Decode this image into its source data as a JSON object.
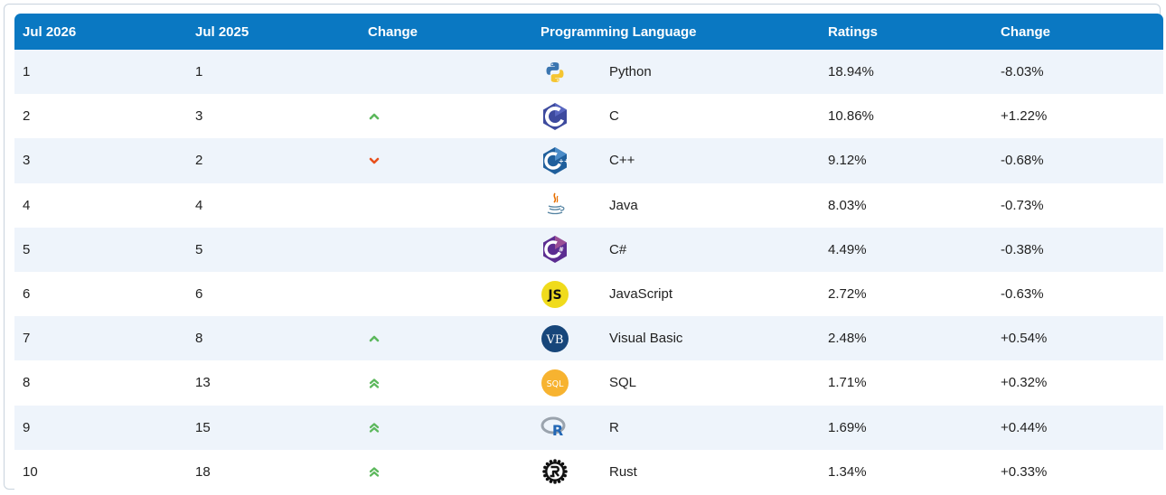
{
  "headers": {
    "col1": "Jul 2026",
    "col2": "Jul 2025",
    "col3": "Change",
    "col4": "Programming Language",
    "col5": "Ratings",
    "col6": "Change"
  },
  "colors": {
    "header_bg": "#0a78c2",
    "row_alt_bg": "#eef4fb",
    "up_arrow": "#5cb85c",
    "down_arrow": "#e8501c"
  },
  "rows": [
    {
      "rank_2026": "1",
      "rank_2025": "1",
      "trend": "none",
      "language": "Python",
      "logo": "python-logo-icon",
      "rating": "18.94%",
      "change": "-8.03%"
    },
    {
      "rank_2026": "2",
      "rank_2025": "3",
      "trend": "up",
      "language": "C",
      "logo": "c-logo-icon",
      "rating": "10.86%",
      "change": "+1.22%"
    },
    {
      "rank_2026": "3",
      "rank_2025": "2",
      "trend": "down",
      "language": "C++",
      "logo": "cpp-logo-icon",
      "rating": "9.12%",
      "change": "-0.68%"
    },
    {
      "rank_2026": "4",
      "rank_2025": "4",
      "trend": "none",
      "language": "Java",
      "logo": "java-logo-icon",
      "rating": "8.03%",
      "change": "-0.73%"
    },
    {
      "rank_2026": "5",
      "rank_2025": "5",
      "trend": "none",
      "language": "C#",
      "logo": "csharp-logo-icon",
      "rating": "4.49%",
      "change": "-0.38%"
    },
    {
      "rank_2026": "6",
      "rank_2025": "6",
      "trend": "none",
      "language": "JavaScript",
      "logo": "javascript-logo-icon",
      "rating": "2.72%",
      "change": "-0.63%"
    },
    {
      "rank_2026": "7",
      "rank_2025": "8",
      "trend": "up",
      "language": "Visual Basic",
      "logo": "visual-basic-logo-icon",
      "rating": "2.48%",
      "change": "+0.54%"
    },
    {
      "rank_2026": "8",
      "rank_2025": "13",
      "trend": "up-double",
      "language": "SQL",
      "logo": "sql-logo-icon",
      "rating": "1.71%",
      "change": "+0.32%"
    },
    {
      "rank_2026": "9",
      "rank_2025": "15",
      "trend": "up-double",
      "language": "R",
      "logo": "r-logo-icon",
      "rating": "1.69%",
      "change": "+0.44%"
    },
    {
      "rank_2026": "10",
      "rank_2025": "18",
      "trend": "up-double",
      "language": "Rust",
      "logo": "rust-logo-icon",
      "rating": "1.34%",
      "change": "+0.33%"
    }
  ],
  "logo_text": {
    "javascript": "JS",
    "visual_basic": "VB",
    "sql": "SQL",
    "r": "R"
  }
}
